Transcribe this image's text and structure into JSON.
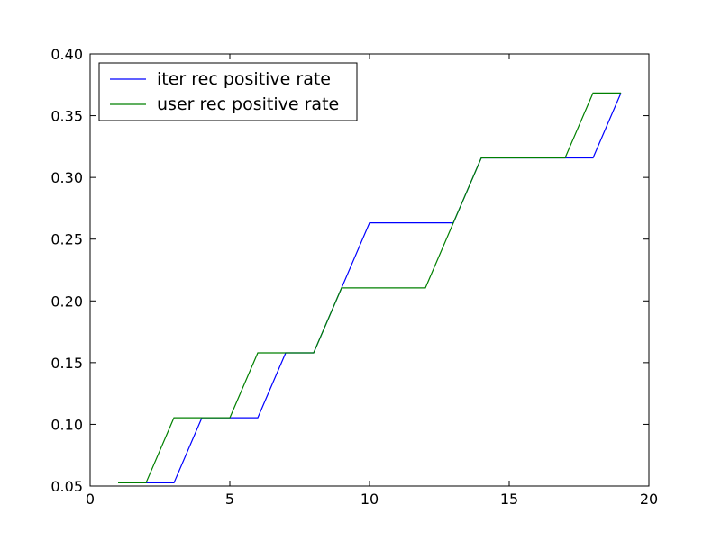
{
  "chart_data": {
    "type": "line",
    "title": "",
    "xlabel": "",
    "ylabel": "",
    "xlim": [
      0,
      20
    ],
    "ylim": [
      0.05,
      0.4
    ],
    "xticks": [
      0,
      5,
      10,
      15,
      20
    ],
    "xtick_labels": [
      "0",
      "5",
      "10",
      "15",
      "20"
    ],
    "yticks": [
      0.05,
      0.1,
      0.15,
      0.2,
      0.25,
      0.3,
      0.35,
      0.4
    ],
    "ytick_labels": [
      "0.05",
      "0.10",
      "0.15",
      "0.20",
      "0.25",
      "0.30",
      "0.35",
      "0.40"
    ],
    "grid": false,
    "legend_position": "upper-left",
    "x": [
      1,
      2,
      3,
      4,
      5,
      6,
      7,
      8,
      9,
      10,
      11,
      12,
      13,
      14,
      15,
      16,
      17,
      18,
      19
    ],
    "series": [
      {
        "name": "iter rec positive rate",
        "color": "#0000ff",
        "values": [
          0.0526,
          0.0526,
          0.0526,
          0.1053,
          0.1053,
          0.1053,
          0.1579,
          0.1579,
          0.2105,
          0.2632,
          0.2632,
          0.2632,
          0.2632,
          0.3158,
          0.3158,
          0.3158,
          0.3158,
          0.3158,
          0.3684
        ]
      },
      {
        "name": "user rec positive rate",
        "color": "#008000",
        "values": [
          0.0526,
          0.0526,
          0.1053,
          0.1053,
          0.1053,
          0.1579,
          0.1579,
          0.1579,
          0.2105,
          0.2105,
          0.2105,
          0.2105,
          0.2632,
          0.3158,
          0.3158,
          0.3158,
          0.3158,
          0.3684,
          0.3684
        ]
      }
    ]
  }
}
